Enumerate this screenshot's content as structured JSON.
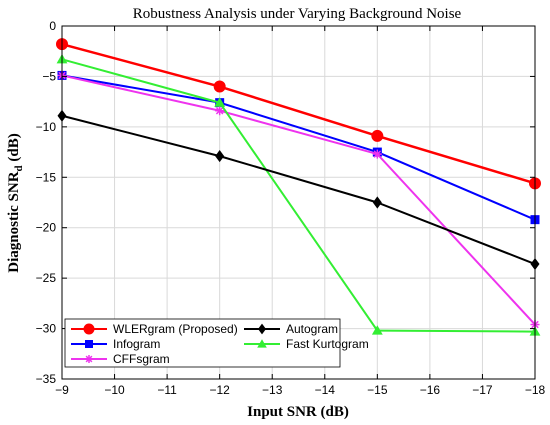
{
  "chart_data": {
    "type": "line",
    "title": "Robustness Analysis under Varying Background Noise",
    "xlabel": "Input SNR (dB)",
    "ylabel_main": "Diagnostic SNR",
    "ylabel_sub": "d",
    "ylabel_unit": " (dB)",
    "x": [
      -9,
      -12,
      -15,
      -18
    ],
    "x_ticks": [
      -9,
      -10,
      -11,
      -12,
      -13,
      -14,
      -15,
      -16,
      -17,
      -18
    ],
    "x_tick_labels": [
      "−9",
      "−10",
      "−11",
      "−12",
      "−13",
      "−14",
      "−15",
      "−16",
      "−17",
      "−18"
    ],
    "xlim": [
      -9,
      -18
    ],
    "x_reversed": true,
    "y_ticks": [
      0,
      -5,
      -10,
      -15,
      -20,
      -25,
      -30,
      -35
    ],
    "y_tick_labels": [
      "0",
      "−5",
      "−10",
      "−15",
      "−20",
      "−25",
      "−30",
      "−35"
    ],
    "ylim": [
      -35,
      0
    ],
    "grid": true,
    "legend_position": "bottom-left",
    "series": [
      {
        "name": "WLERgram (Proposed)",
        "values": [
          -1.8,
          -6.0,
          -10.9,
          -15.6
        ],
        "color": "#ff0000",
        "marker": "circle"
      },
      {
        "name": "Autogram",
        "values": [
          -8.9,
          -12.9,
          -17.5,
          -23.6
        ],
        "color": "#000000",
        "marker": "diamond"
      },
      {
        "name": "Infogram",
        "values": [
          -4.9,
          -7.6,
          -12.5,
          -19.2
        ],
        "color": "#0000ff",
        "marker": "square"
      },
      {
        "name": "Fast Kurtogram",
        "values": [
          -3.3,
          -7.6,
          -30.2,
          -30.3
        ],
        "color": "#33ee33",
        "marker": "triangle"
      },
      {
        "name": "CFFsgram",
        "values": [
          -4.9,
          -8.4,
          -12.7,
          -29.6
        ],
        "color": "#ee33ee",
        "marker": "asterisk"
      }
    ]
  }
}
